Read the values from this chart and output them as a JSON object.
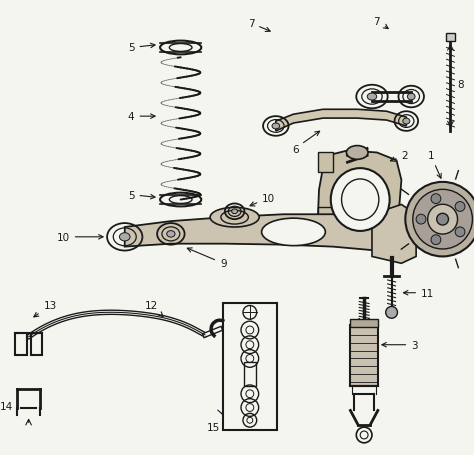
{
  "background_color": "#f5f5f0",
  "fig_width": 4.74,
  "fig_height": 4.56,
  "dpi": 100,
  "line_color": "#1a1a1a",
  "label_fontsize": 7.5,
  "xlim": [
    0,
    474
  ],
  "ylim": [
    0,
    456
  ]
}
